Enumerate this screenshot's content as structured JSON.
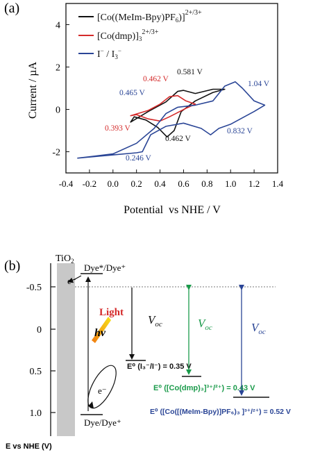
{
  "colors": {
    "series_1": "#111111",
    "series_2": "#d42a2a",
    "series_3": "#2a4596",
    "green": "#1a9a4a",
    "gray_bar": "#c8c8c8"
  },
  "panel_a": {
    "tag": "(a)",
    "legend": {
      "series_1_main": "[Co((MeIm-Bpy)PF",
      "series_1_sub": "6",
      "series_1_close": ")]",
      "series_1_sup": "2+/3+",
      "series_2_main": "[Co(dmp)]",
      "series_2_sub": "3",
      "series_2_sup": "2+/3+",
      "series_3_main": "I",
      "series_3_supA": "−",
      "series_3_mid": " / I",
      "series_3_sub": "3",
      "series_3_supB": "−"
    },
    "peak_labels": {
      "black_upper": "0.581 V",
      "black_lower": "0.462 V",
      "red_upper": "0.462 V",
      "red_lower": "0.393 V",
      "blue_upper_right": "1.04 V",
      "blue_upper_left": "0.465 V",
      "blue_lower_right": "0.832 V",
      "blue_lower_left": "0.246 V"
    }
  },
  "chart_data": {
    "type": "line",
    "xlabel": "Potential  vs NHE / V",
    "ylabel": "Current / µA",
    "xlim": [
      -0.4,
      1.4
    ],
    "ylim": [
      -3,
      5
    ],
    "xticks": [
      "-0.4",
      "-0.2",
      "0.0",
      "0.2",
      "0.4",
      "0.6",
      "0.8",
      "1.0",
      "1.2",
      "1.4"
    ],
    "yticks": [
      "-2",
      "0",
      "2",
      "4"
    ],
    "series": [
      {
        "name": "[Co((MeIm-Bpy)PF6)]2+/3+",
        "x": [
          0.15,
          0.3,
          0.45,
          0.55,
          0.6,
          0.7,
          0.85,
          0.95,
          0.85,
          0.7,
          0.58,
          0.52,
          0.46,
          0.38,
          0.28,
          0.18,
          0.15
        ],
        "y": [
          -0.6,
          -0.1,
          0.35,
          0.85,
          0.9,
          0.75,
          0.95,
          0.95,
          0.8,
          0.4,
          -0.1,
          -1.0,
          -1.3,
          -0.85,
          -0.5,
          -0.35,
          -0.6
        ]
      },
      {
        "name": "[Co(dmp)3]2+/3+",
        "x": [
          0.15,
          0.3,
          0.4,
          0.48,
          0.55,
          0.62,
          0.7,
          0.62,
          0.55,
          0.48,
          0.4,
          0.3,
          0.2,
          0.15
        ],
        "y": [
          -0.3,
          -0.05,
          0.25,
          0.6,
          0.65,
          0.4,
          0.25,
          0.05,
          -0.15,
          -0.35,
          -0.55,
          -0.45,
          -0.25,
          -0.3
        ]
      },
      {
        "name": "I-/I3-",
        "x": [
          -0.3,
          0.0,
          0.2,
          0.35,
          0.45,
          0.55,
          0.7,
          0.85,
          0.95,
          1.04,
          1.1,
          1.2,
          1.29,
          1.2,
          1.1,
          1.0,
          0.9,
          0.83,
          0.75,
          0.6,
          0.45,
          0.32,
          0.25,
          0.2,
          0.0,
          -0.3
        ],
        "y": [
          -2.3,
          -2.1,
          -1.6,
          -0.9,
          -0.2,
          0.1,
          0.2,
          0.4,
          1.1,
          1.3,
          1.0,
          0.4,
          0.2,
          -0.1,
          -0.4,
          -0.7,
          -0.9,
          -1.2,
          -0.9,
          -0.65,
          -0.8,
          -1.2,
          -2.0,
          -2.05,
          -2.15,
          -2.3
        ]
      }
    ]
  },
  "panel_b": {
    "tag": "(b)",
    "tio2": "TiO",
    "tio2_sub": "2",
    "y_ticks": [
      "-0.5",
      "0",
      "0.5",
      "1.0"
    ],
    "y_axis_title": "E vs NHE (V)",
    "dye_star": "Dye*/Dye⁺",
    "dye_ground": "Dye/Dye⁺",
    "electron_1": "e⁻",
    "electron_2": "e⁻",
    "light": "Light",
    "hv": "hν",
    "voc": "V",
    "voc_sub": "oc",
    "e0_iodide": "E⁰ (I₃⁻/I⁻) = 0.35 V",
    "e0_dmp": "E⁰ ([Co(dmp)₃]³⁺/²⁺) = 0.43 V",
    "e0_meim": "E⁰ ([Co([(MeIm-Bpy)]PF₆)₃ ]³⁺/²⁺) = 0.52 V"
  }
}
